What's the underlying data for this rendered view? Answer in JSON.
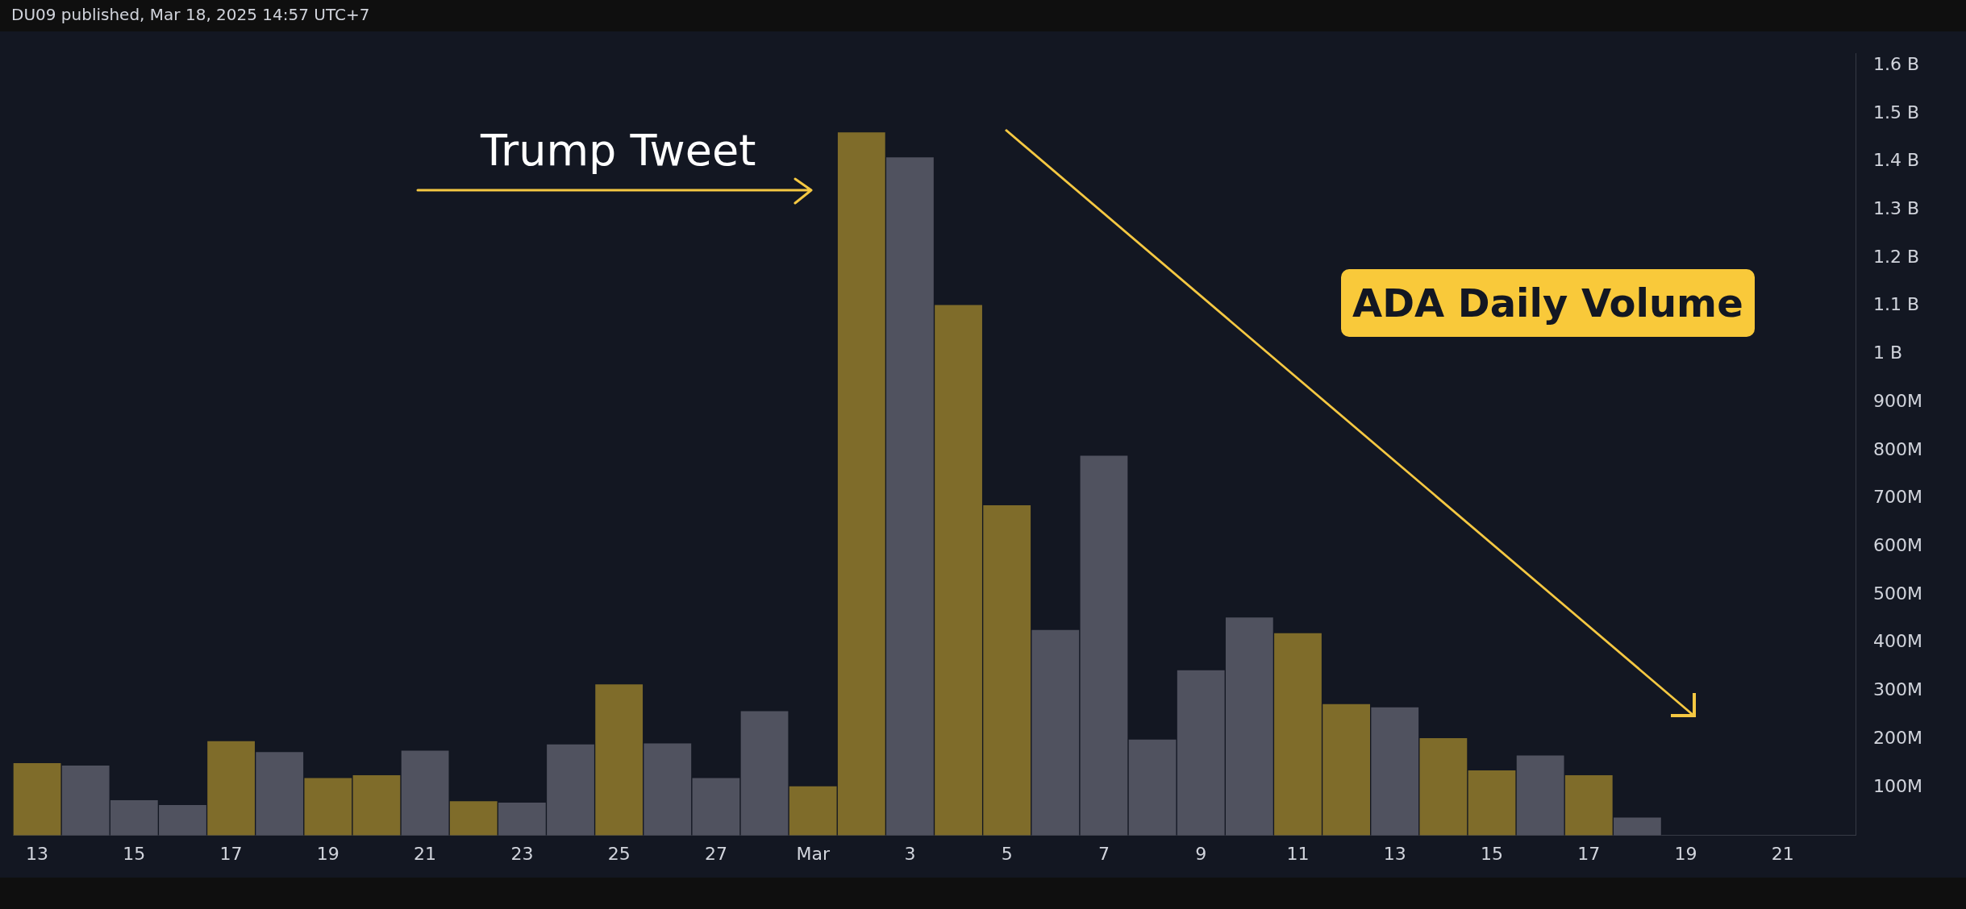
{
  "chart_data": {
    "type": "bar",
    "title": "ADA Daily Volume",
    "annotations": [
      "DU09 published, Mar 18, 2025 14:57 UTC+7",
      "Trump Tweet"
    ],
    "categories": [
      "13",
      null,
      "15",
      null,
      "17",
      null,
      "19",
      null,
      "21",
      null,
      "23",
      null,
      "25",
      null,
      "27",
      null,
      "Mar",
      null,
      "3",
      null,
      "5",
      null,
      "7",
      null,
      "9",
      null,
      "11",
      null,
      "13",
      null,
      "15",
      null,
      "17",
      null,
      "19",
      null,
      "21",
      null
    ],
    "values": [
      151000000,
      146000000,
      74000000,
      64000000,
      197000000,
      174000000,
      120000000,
      126000000,
      177000000,
      72000000,
      69000000,
      190000000,
      315000000,
      192000000,
      120000000,
      259000000,
      103000000,
      1462000000,
      1410000000,
      1103000000,
      687000000,
      428000000,
      790000000,
      200000000,
      344000000,
      454000000,
      421000000,
      274000000,
      267000000,
      203000000,
      136000000,
      167000000,
      126000000,
      38000000,
      null,
      null,
      null,
      null
    ],
    "colors": [
      "#7f6c2a",
      "#50525f",
      "#50525f",
      "#50525f",
      "#7f6c2a",
      "#50525f",
      "#7f6c2a",
      "#7f6c2a",
      "#50525f",
      "#7f6c2a",
      "#50525f",
      "#50525f",
      "#7f6c2a",
      "#50525f",
      "#50525f",
      "#50525f",
      "#7f6c2a",
      "#7f6c2a",
      "#50525f",
      "#7f6c2a",
      "#7f6c2a",
      "#50525f",
      "#50525f",
      "#50525f",
      "#50525f",
      "#50525f",
      "#7f6c2a",
      "#7f6c2a",
      "#50525f",
      "#7f6c2a",
      "#7f6c2a",
      "#50525f",
      "#7f6c2a",
      "#50525f",
      "#50525f",
      "#50525f",
      "#50525f",
      "#50525f"
    ],
    "ylim": [
      0,
      1625000000
    ],
    "yticks": [
      {
        "value": 100000000,
        "label": "100M"
      },
      {
        "value": 200000000,
        "label": "200M"
      },
      {
        "value": 300000000,
        "label": "300M"
      },
      {
        "value": 400000000,
        "label": "400M"
      },
      {
        "value": 500000000,
        "label": "500M"
      },
      {
        "value": 600000000,
        "label": "600M"
      },
      {
        "value": 700000000,
        "label": "700M"
      },
      {
        "value": 800000000,
        "label": "800M"
      },
      {
        "value": 900000000,
        "label": "900M"
      },
      {
        "value": 1000000000,
        "label": "1 B"
      },
      {
        "value": 1100000000,
        "label": "1.1 B"
      },
      {
        "value": 1200000000,
        "label": "1.2 B"
      },
      {
        "value": 1300000000,
        "label": "1.3 B"
      },
      {
        "value": 1400000000,
        "label": "1.4 B"
      },
      {
        "value": 1500000000,
        "label": "1.5 B"
      },
      {
        "value": 1600000000,
        "label": "1.6 B"
      }
    ],
    "grid": false,
    "legend": false
  }
}
